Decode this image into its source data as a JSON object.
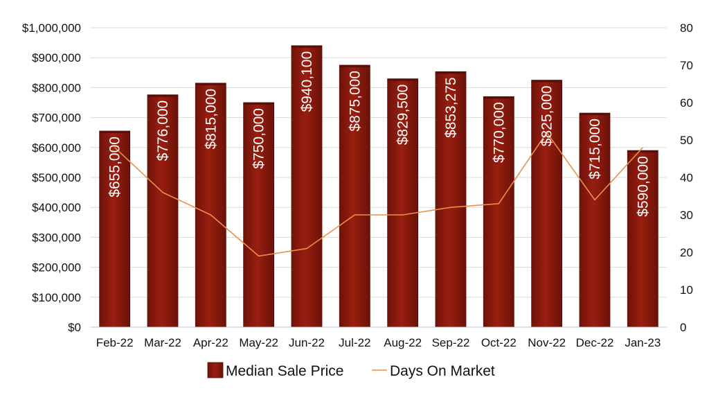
{
  "chart_data": {
    "type": "bar",
    "categories": [
      "Feb-22",
      "Mar-22",
      "Apr-22",
      "May-22",
      "Jun-22",
      "Jul-22",
      "Aug-22",
      "Sep-22",
      "Oct-22",
      "Nov-22",
      "Dec-22",
      "Jan-23"
    ],
    "series": [
      {
        "name": "Median Sale Price",
        "type": "bar",
        "axis": "left",
        "values": [
          655000,
          776000,
          815000,
          750000,
          940100,
          875000,
          829500,
          853275,
          770000,
          825000,
          715000,
          590000
        ],
        "data_labels": [
          "$655,000",
          "$776,000",
          "$815,000",
          "$750,000",
          "$940,100",
          "$875,000",
          "$829,500",
          "$853,275",
          "$770,000",
          "$825,000",
          "$715,000",
          "$590,000"
        ],
        "color": "#8B1A0E"
      },
      {
        "name": "Days On Market",
        "type": "line",
        "axis": "right",
        "values": [
          48,
          36,
          30,
          19,
          21,
          30,
          30,
          32,
          33,
          52,
          34,
          48
        ],
        "color": "#E8914A"
      }
    ],
    "y_left": {
      "ylim": [
        0,
        1000000
      ],
      "ticks": [
        0,
        100000,
        200000,
        300000,
        400000,
        500000,
        600000,
        700000,
        800000,
        900000,
        1000000
      ],
      "tick_labels": [
        "$0",
        "$100,000",
        "$200,000",
        "$300,000",
        "$400,000",
        "$500,000",
        "$600,000",
        "$700,000",
        "$800,000",
        "$900,000",
        "$1,000,000"
      ]
    },
    "y_right": {
      "ylim": [
        0,
        80
      ],
      "ticks": [
        0,
        10,
        20,
        30,
        40,
        50,
        60,
        70,
        80
      ],
      "tick_labels": [
        "0",
        "10",
        "20",
        "30",
        "40",
        "50",
        "60",
        "70",
        "80"
      ]
    },
    "grid": true,
    "legend": {
      "position": "bottom"
    },
    "title": "",
    "xlabel": "",
    "ylabel": ""
  }
}
